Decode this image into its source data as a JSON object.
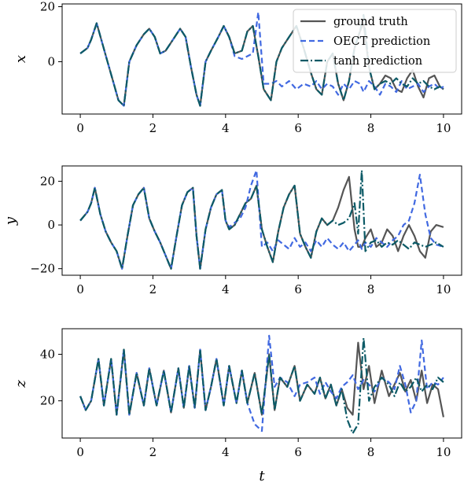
{
  "colors": {
    "ground_truth": "#555555",
    "oect": "#4169e1",
    "tanh": "#0c5a66"
  },
  "chart_data": [
    {
      "type": "line",
      "ylabel": "x",
      "xlabel": "",
      "xlim": [
        -0.5,
        10.5
      ],
      "ylim": [
        -19,
        21
      ],
      "xticks": [
        "0",
        "2",
        "4",
        "6",
        "8",
        "10"
      ],
      "yticks": [
        "0",
        "20"
      ],
      "legend": {
        "placement": "top-right",
        "entries": [
          "ground truth",
          "OECT prediction",
          "tanh prediction"
        ]
      },
      "x": [
        0,
        0.2,
        0.3,
        0.45,
        0.6,
        0.75,
        0.9,
        1.05,
        1.2,
        1.35,
        1.55,
        1.75,
        1.9,
        2.05,
        2.2,
        2.35,
        2.55,
        2.75,
        2.9,
        3.05,
        3.2,
        3.3,
        3.45,
        3.6,
        3.8,
        3.95,
        4.1,
        4.25,
        4.45,
        4.6,
        4.75,
        4.9,
        5.05,
        5.25,
        5.4,
        5.55,
        5.75,
        5.95,
        6.15,
        6.35,
        6.5,
        6.65,
        6.8,
        6.95,
        7.1,
        7.25,
        7.4,
        7.55,
        7.7,
        7.8,
        7.95,
        8.1,
        8.25,
        8.4,
        8.55,
        8.7,
        8.85,
        9.0,
        9.15,
        9.3,
        9.45,
        9.6,
        9.75,
        9.9,
        10.0
      ],
      "series": [
        {
          "name": "ground truth",
          "values": [
            3,
            5,
            8,
            14,
            7,
            0,
            -7,
            -14,
            -16,
            0,
            6,
            10,
            12,
            9,
            3,
            4,
            8,
            12,
            9,
            -2,
            -12,
            -16,
            0,
            4,
            9,
            13,
            9,
            3,
            4,
            11,
            13,
            2,
            -10,
            -14,
            0,
            5,
            9,
            13,
            5,
            -4,
            -10,
            -12,
            0,
            3,
            -8,
            -14,
            -7,
            5,
            11,
            14,
            -2,
            -10,
            -8,
            -5,
            -6,
            -10,
            -11,
            -6,
            -3,
            -9,
            -13,
            -6,
            -5,
            -9,
            -10
          ]
        },
        {
          "name": "OECT prediction",
          "values": [
            3,
            5,
            8,
            14,
            7,
            0,
            -7,
            -14,
            -16,
            0,
            6,
            10,
            12,
            9,
            3,
            4,
            8,
            12,
            9,
            -2,
            -12,
            -16,
            0,
            4,
            9,
            13,
            9,
            2,
            1,
            2,
            3,
            18,
            -8,
            -8,
            -7,
            -9,
            -7,
            -10,
            -8,
            -9,
            -7,
            -10,
            -8,
            -9,
            -12,
            -8,
            -10,
            -7,
            -8,
            -11,
            -7,
            -9,
            -12,
            -8,
            -9,
            -11,
            -7,
            -10,
            -9,
            -8,
            -11,
            -9,
            -8,
            -10,
            -9
          ]
        },
        {
          "name": "tanh prediction",
          "values": [
            3,
            5,
            8,
            14,
            7,
            0,
            -7,
            -14,
            -16,
            0,
            6,
            10,
            12,
            9,
            3,
            4,
            8,
            12,
            9,
            -2,
            -12,
            -16,
            0,
            4,
            9,
            13,
            9,
            3,
            4,
            11,
            13,
            2,
            -10,
            -14,
            0,
            5,
            9,
            13,
            5,
            -4,
            -10,
            -12,
            0,
            3,
            -8,
            -14,
            -7,
            5,
            11,
            17,
            -2,
            -10,
            -8,
            -7,
            -8,
            -6,
            -8,
            -9,
            -6,
            -8,
            -7,
            -9,
            -10,
            -9,
            -10
          ]
        }
      ]
    },
    {
      "type": "line",
      "ylabel": "y",
      "xlabel": "",
      "xlim": [
        -0.5,
        10.5
      ],
      "ylim": [
        -23,
        27
      ],
      "xticks": [
        "0",
        "2",
        "4",
        "6",
        "8",
        "10"
      ],
      "yticks": [
        "−20",
        "0",
        "20"
      ],
      "x": [
        0,
        0.2,
        0.3,
        0.4,
        0.55,
        0.7,
        0.85,
        1.0,
        1.15,
        1.3,
        1.45,
        1.6,
        1.75,
        1.9,
        2.05,
        2.2,
        2.35,
        2.5,
        2.65,
        2.8,
        2.95,
        3.1,
        3.2,
        3.3,
        3.45,
        3.6,
        3.75,
        3.9,
        4.0,
        4.1,
        4.25,
        4.4,
        4.55,
        4.7,
        4.85,
        5.0,
        5.15,
        5.3,
        5.45,
        5.6,
        5.75,
        5.9,
        6.05,
        6.2,
        6.35,
        6.5,
        6.65,
        6.8,
        6.95,
        7.1,
        7.25,
        7.4,
        7.55,
        7.65,
        7.75,
        7.85,
        8.0,
        8.15,
        8.3,
        8.45,
        8.6,
        8.75,
        8.9,
        9.05,
        9.2,
        9.35,
        9.5,
        9.65,
        9.8,
        10.0
      ],
      "series": [
        {
          "name": "ground truth",
          "values": [
            2,
            6,
            10,
            17,
            5,
            -3,
            -8,
            -12,
            -20,
            -5,
            9,
            14,
            17,
            3,
            -3,
            -8,
            -14,
            -20,
            -5,
            9,
            15,
            17,
            -5,
            -20,
            -2,
            8,
            14,
            16,
            2,
            -2,
            0,
            5,
            10,
            12,
            18,
            -2,
            -10,
            -17,
            -3,
            8,
            14,
            18,
            -4,
            -10,
            -15,
            -3,
            3,
            0,
            2,
            8,
            16,
            22,
            -2,
            -10,
            -10,
            -6,
            -2,
            -10,
            -8,
            -2,
            -5,
            -12,
            -5,
            0,
            -5,
            -12,
            -15,
            -3,
            0,
            -1
          ]
        },
        {
          "name": "OECT prediction",
          "values": [
            2,
            6,
            10,
            17,
            5,
            -3,
            -8,
            -12,
            -20,
            -5,
            9,
            14,
            17,
            3,
            -3,
            -8,
            -14,
            -20,
            -5,
            9,
            15,
            17,
            -5,
            -20,
            -2,
            8,
            14,
            16,
            2,
            -1,
            1,
            3,
            8,
            18,
            25,
            -10,
            -8,
            -12,
            -7,
            -9,
            -11,
            -6,
            -10,
            -8,
            -12,
            -7,
            -10,
            -6,
            -9,
            -11,
            -8,
            -12,
            -9,
            -7,
            -11,
            -8,
            -10,
            -6,
            -8,
            -10,
            -7,
            -5,
            0,
            2,
            10,
            23,
            5,
            -6,
            -9,
            -10
          ]
        },
        {
          "name": "tanh prediction",
          "values": [
            2,
            6,
            10,
            17,
            5,
            -3,
            -8,
            -12,
            -20,
            -5,
            9,
            14,
            17,
            3,
            -3,
            -8,
            -14,
            -20,
            -5,
            9,
            15,
            17,
            -5,
            -20,
            -2,
            8,
            14,
            16,
            2,
            -2,
            0,
            5,
            10,
            12,
            18,
            -2,
            -10,
            -17,
            -3,
            8,
            14,
            18,
            -4,
            -10,
            -15,
            -3,
            3,
            0,
            2,
            0,
            1,
            3,
            10,
            -4,
            25,
            -12,
            -8,
            -7,
            -10,
            -8,
            -9,
            -7,
            -9,
            -11,
            -8,
            -9,
            -10,
            -9,
            -8,
            -10
          ]
        }
      ]
    },
    {
      "type": "line",
      "ylabel": "z",
      "xlabel": "t",
      "xlim": [
        -0.5,
        10.5
      ],
      "ylim": [
        4,
        51
      ],
      "xticks": [
        "0",
        "2",
        "4",
        "6",
        "8",
        "10"
      ],
      "yticks": [
        "20",
        "40"
      ],
      "x": [
        0,
        0.15,
        0.3,
        0.5,
        0.65,
        0.85,
        1.0,
        1.2,
        1.35,
        1.55,
        1.75,
        1.9,
        2.1,
        2.3,
        2.5,
        2.7,
        2.85,
        3.0,
        3.15,
        3.3,
        3.45,
        3.6,
        3.75,
        3.95,
        4.1,
        4.3,
        4.45,
        4.6,
        4.8,
        5.0,
        5.2,
        5.35,
        5.5,
        5.7,
        5.9,
        6.05,
        6.25,
        6.45,
        6.6,
        6.75,
        6.9,
        7.05,
        7.2,
        7.35,
        7.5,
        7.65,
        7.8,
        7.95,
        8.1,
        8.3,
        8.5,
        8.65,
        8.8,
        8.95,
        9.1,
        9.25,
        9.4,
        9.55,
        9.7,
        9.85,
        10.0
      ],
      "series": [
        {
          "name": "ground truth",
          "values": [
            22,
            16,
            20,
            38,
            18,
            38,
            14,
            42,
            14,
            32,
            18,
            34,
            18,
            33,
            15,
            34,
            17,
            35,
            17,
            42,
            16,
            26,
            38,
            18,
            35,
            19,
            33,
            19,
            32,
            14,
            40,
            16,
            30,
            26,
            35,
            20,
            27,
            23,
            30,
            21,
            27,
            18,
            25,
            17,
            14,
            45,
            25,
            35,
            19,
            33,
            22,
            27,
            32,
            24,
            29,
            20,
            33,
            19,
            27,
            25,
            13
          ]
        },
        {
          "name": "OECT prediction",
          "values": [
            22,
            16,
            20,
            38,
            18,
            38,
            14,
            42,
            14,
            32,
            18,
            34,
            18,
            33,
            15,
            34,
            17,
            35,
            17,
            42,
            16,
            26,
            38,
            18,
            35,
            19,
            33,
            19,
            10,
            7,
            48,
            26,
            30,
            28,
            22,
            27,
            28,
            30,
            23,
            28,
            24,
            21,
            26,
            28,
            31,
            25,
            29,
            27,
            24,
            30,
            28,
            25,
            35,
            27,
            15,
            20,
            46,
            25,
            28,
            27,
            30
          ]
        },
        {
          "name": "tanh prediction",
          "values": [
            22,
            16,
            20,
            38,
            18,
            38,
            14,
            42,
            14,
            32,
            18,
            34,
            18,
            33,
            15,
            34,
            17,
            35,
            17,
            42,
            16,
            26,
            38,
            18,
            35,
            19,
            33,
            19,
            32,
            14,
            40,
            16,
            30,
            26,
            35,
            20,
            27,
            23,
            30,
            21,
            27,
            18,
            25,
            12,
            6,
            10,
            47,
            20,
            26,
            30,
            27,
            22,
            28,
            24,
            26,
            30,
            24,
            27,
            25,
            30,
            28
          ]
        }
      ]
    }
  ]
}
